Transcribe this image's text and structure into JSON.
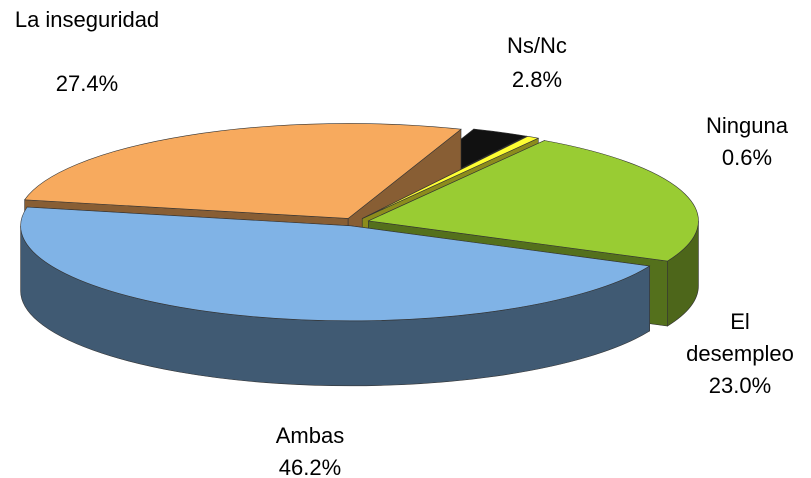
{
  "chart_data": {
    "type": "pie3d",
    "categories": [
      "Ns/Nc",
      "Ninguna",
      "El desempleo",
      "Ambas",
      "La inseguridad"
    ],
    "values": [
      2.8,
      0.6,
      23.0,
      46.2,
      27.4
    ],
    "value_labels": [
      "2.8%",
      "0.6%",
      "23.0%",
      "46.2%",
      "27.4%"
    ],
    "colors": [
      "#111111",
      "#ffff33",
      "#99cc33",
      "#80b3e6",
      "#f7aa5e"
    ]
  }
}
